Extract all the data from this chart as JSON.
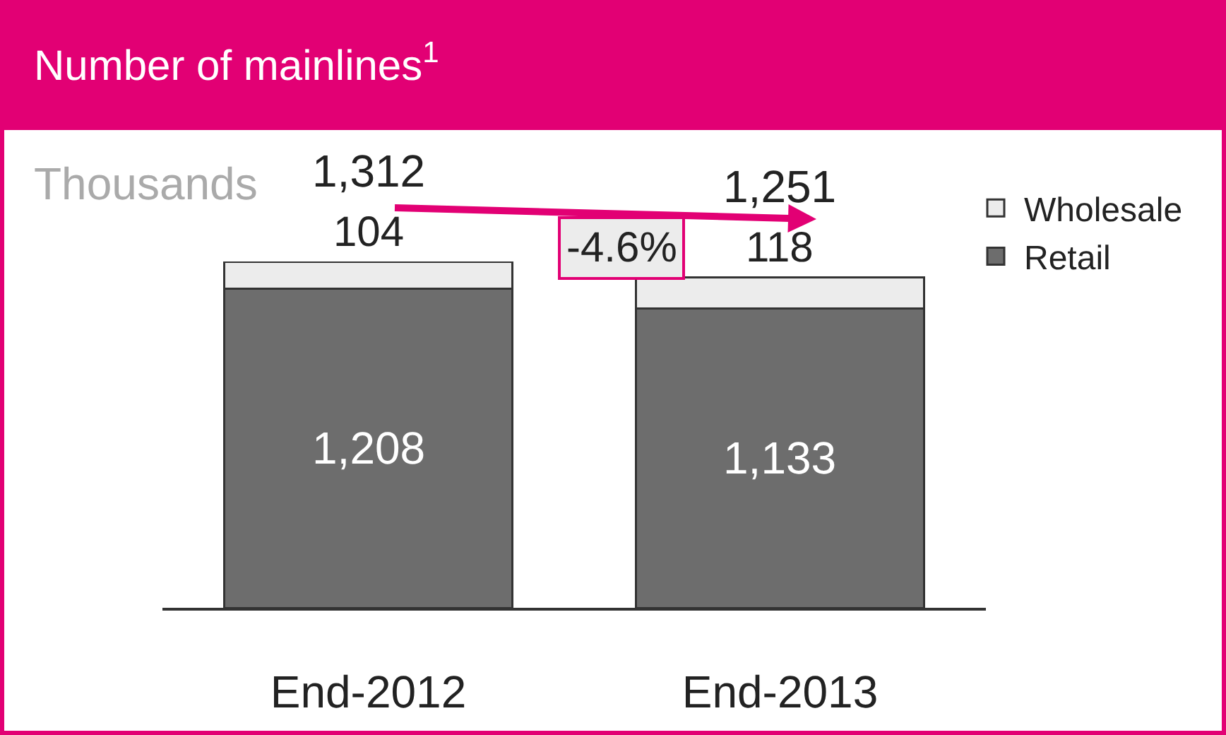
{
  "chart_data": {
    "type": "bar",
    "title": "Number of mainlines$^{1}$",
    "subtitle": "Thousands",
    "stacked": true,
    "categories": [
      "End-2012",
      "End-2013"
    ],
    "series": [
      {
        "name": "Retail",
        "color": "#6d6d6d",
        "values": [
          1208,
          1133
        ],
        "value_labels": [
          "1,208",
          "1,133"
        ]
      },
      {
        "name": "Wholesale",
        "color": "#ececec",
        "values": [
          104,
          118
        ],
        "value_labels": [
          "104",
          "118"
        ]
      }
    ],
    "totals": [
      "1,312",
      "1,251"
    ],
    "annotations": [
      "-4.6%"
    ],
    "legend": "top right"
  }
}
